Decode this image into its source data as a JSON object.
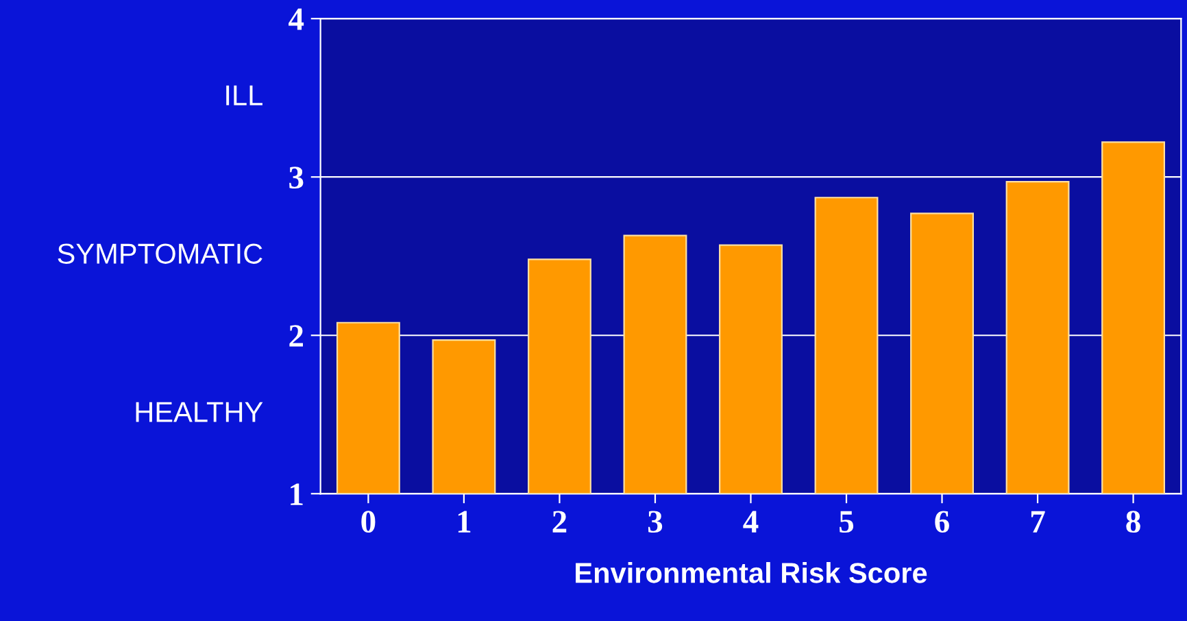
{
  "chart_data": {
    "type": "bar",
    "xlabel": "Environmental Risk Score",
    "categories": [
      "0",
      "1",
      "2",
      "3",
      "4",
      "5",
      "6",
      "7",
      "8"
    ],
    "values": [
      2.08,
      1.97,
      2.48,
      2.63,
      2.57,
      2.87,
      2.77,
      2.97,
      3.22
    ],
    "color": "#ff9900",
    "ylim": [
      1,
      4
    ],
    "yticks": [
      1,
      2,
      3,
      4
    ],
    "grid": "y",
    "annotations": [
      "ILL",
      "SYMPTOMATIC",
      "HEALTHY"
    ]
  }
}
